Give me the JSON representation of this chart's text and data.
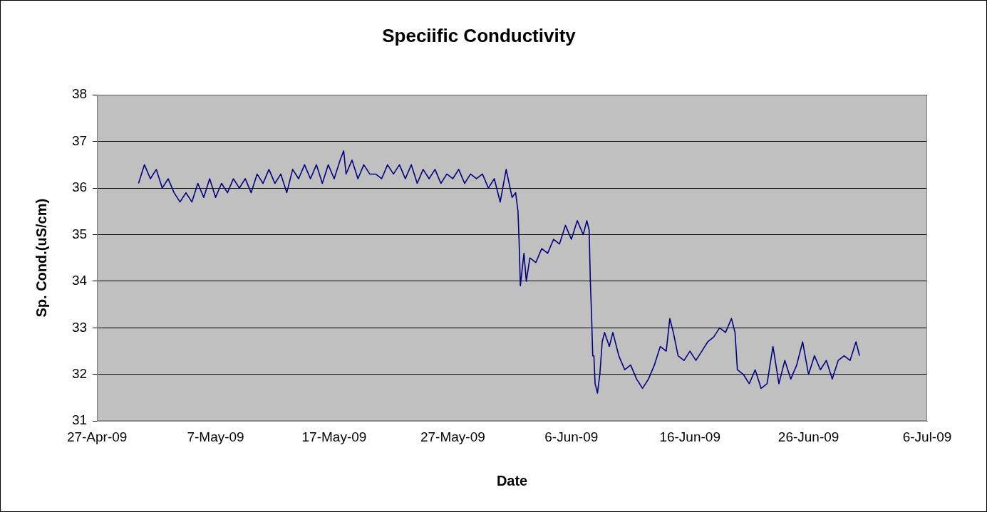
{
  "chart_data": {
    "type": "line",
    "title": "Speciific Conductivity",
    "xlabel": "Date",
    "ylabel": "Sp. Cond.(uS/cm)",
    "xlim": [
      "--04-27",
      "--07-06"
    ],
    "xticks": [
      {
        "value": "--04-27",
        "label": "27-Apr-09"
      },
      {
        "value": "--05-07",
        "label": "7-May-09"
      },
      {
        "value": "--05-17",
        "label": "17-May-09"
      },
      {
        "value": "--05-27",
        "label": "27-May-09"
      },
      {
        "value": "--06-06",
        "label": "6-Jun-09"
      },
      {
        "value": "--06-16",
        "label": "16-Jun-09"
      },
      {
        "value": "--06-26",
        "label": "26-Jun-09"
      },
      {
        "value": "--07-06",
        "label": "6-Jul-09"
      }
    ],
    "ylim": [
      31,
      38
    ],
    "yticks": [
      31,
      32,
      33,
      34,
      35,
      36,
      37,
      38
    ],
    "grid": "y",
    "legend": false,
    "marker": "none",
    "line_style": "solid",
    "series": [
      {
        "color": "#000080",
        "x": [
          "--04-30T12:00",
          "--05-01",
          "--05-01T12:00",
          "--05-02",
          "--05-02T12:00",
          "--05-03",
          "--05-03T12:00",
          "--05-04",
          "--05-04T12:00",
          "--05-05",
          "--05-05T12:00",
          "--05-06",
          "--05-06T12:00",
          "--05-07",
          "--05-07T12:00",
          "--05-08",
          "--05-08T12:00",
          "--05-09",
          "--05-09T12:00",
          "--05-10",
          "--05-10T12:00",
          "--05-11",
          "--05-11T12:00",
          "--05-12",
          "--05-12T12:00",
          "--05-13",
          "--05-13T12:00",
          "--05-14",
          "--05-14T12:00",
          "--05-15",
          "--05-15T12:00",
          "--05-16",
          "--05-16T12:00",
          "--05-17",
          "--05-17T12:00",
          "--05-17T19:12",
          "--05-18",
          "--05-18T12:00",
          "--05-19",
          "--05-19T12:00",
          "--05-20",
          "--05-20T12:00",
          "--05-21",
          "--05-21T12:00",
          "--05-22",
          "--05-22T12:00",
          "--05-23",
          "--05-23T12:00",
          "--05-24",
          "--05-24T12:00",
          "--05-25",
          "--05-25T12:00",
          "--05-26",
          "--05-26T12:00",
          "--05-27",
          "--05-27T12:00",
          "--05-28",
          "--05-28T12:00",
          "--05-29",
          "--05-29T12:00",
          "--05-30",
          "--05-30T12:00",
          "--05-31",
          "--05-31T12:00",
          "--06-01",
          "--06-01T07:12",
          "--06-01T12:00",
          "--06-01T14:24",
          "--06-01T16:48",
          "--06-02",
          "--06-02T04:48",
          "--06-02T12:00",
          "--06-03",
          "--06-03T12:00",
          "--06-04",
          "--06-04T12:00",
          "--06-05",
          "--06-05T12:00",
          "--06-06",
          "--06-06T12:00",
          "--06-07",
          "--06-07T07:12",
          "--06-07T12:00",
          "--06-07T14:24",
          "--06-07T16:48",
          "--06-07T19:12",
          "--06-07T21:36",
          "--06-08",
          "--06-08T04:48",
          "--06-08T09:36",
          "--06-08T14:24",
          "--06-08T19:12",
          "--06-09T04:48",
          "--06-09T12:00",
          "--06-10",
          "--06-10T12:00",
          "--06-11",
          "--06-11T12:00",
          "--06-12",
          "--06-12T12:00",
          "--06-13",
          "--06-13T12:00",
          "--06-14",
          "--06-14T07:12",
          "--06-14T14:24",
          "--06-15",
          "--06-15T12:00",
          "--06-16",
          "--06-16T12:00",
          "--06-17",
          "--06-17T12:00",
          "--06-18",
          "--06-18T12:00",
          "--06-19",
          "--06-19T12:00",
          "--06-19T19:12",
          "--06-20",
          "--06-20T12:00",
          "--06-21",
          "--06-21T12:00",
          "--06-22",
          "--06-22T12:00",
          "--06-23",
          "--06-23T12:00",
          "--06-24",
          "--06-24T12:00",
          "--06-25",
          "--06-25T12:00",
          "--06-26",
          "--06-26T12:00",
          "--06-27",
          "--06-27T12:00",
          "--06-28",
          "--06-28T12:00",
          "--06-29",
          "--06-29T12:00",
          "--06-30",
          "--06-30T07:12"
        ],
        "values": [
          36.1,
          36.5,
          36.2,
          36.4,
          36.0,
          36.2,
          35.9,
          35.7,
          35.9,
          35.7,
          36.1,
          35.8,
          36.2,
          35.8,
          36.1,
          35.9,
          36.2,
          36.0,
          36.2,
          35.9,
          36.3,
          36.1,
          36.4,
          36.1,
          36.3,
          35.9,
          36.4,
          36.2,
          36.5,
          36.2,
          36.5,
          36.1,
          36.5,
          36.2,
          36.6,
          36.8,
          36.3,
          36.6,
          36.2,
          36.5,
          36.3,
          36.3,
          36.2,
          36.5,
          36.3,
          36.5,
          36.2,
          36.5,
          36.1,
          36.4,
          36.2,
          36.4,
          36.1,
          36.3,
          36.2,
          36.4,
          36.1,
          36.3,
          36.2,
          36.3,
          36.0,
          36.2,
          35.7,
          36.4,
          35.8,
          35.9,
          35.5,
          34.8,
          33.9,
          34.6,
          34.0,
          34.5,
          34.4,
          34.7,
          34.6,
          34.9,
          34.8,
          35.2,
          34.9,
          35.3,
          35.0,
          35.3,
          35.1,
          34.0,
          33.3,
          32.4,
          32.4,
          31.8,
          31.6,
          32.0,
          32.7,
          32.9,
          32.6,
          32.9,
          32.4,
          32.1,
          32.2,
          31.9,
          31.7,
          31.9,
          32.2,
          32.6,
          32.5,
          33.2,
          32.9,
          32.4,
          32.3,
          32.5,
          32.3,
          32.5,
          32.7,
          32.8,
          33.0,
          32.9,
          33.2,
          32.9,
          32.1,
          32.0,
          31.8,
          32.1,
          31.7,
          31.8,
          32.6,
          31.8,
          32.3,
          31.9,
          32.2,
          32.7,
          32.0,
          32.4,
          32.1,
          32.3,
          31.9,
          32.3,
          32.4,
          32.3,
          32.7,
          32.4
        ]
      }
    ]
  }
}
